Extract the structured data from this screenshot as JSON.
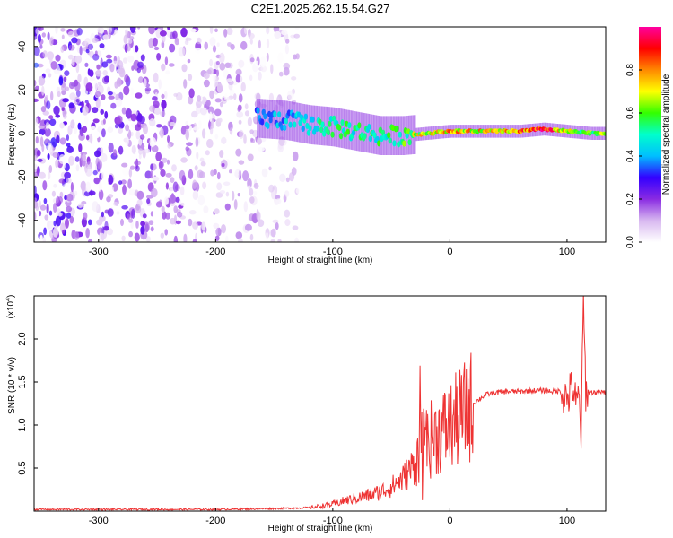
{
  "chart_data": [
    {
      "type": "heatmap",
      "title": "C2E1.2025.262.15.54.G27",
      "xlabel": "Height of straight line (km)",
      "ylabel": "Frequency (Hz)",
      "xlim": [
        -355,
        133
      ],
      "ylim": [
        -50,
        49
      ],
      "x_ticks": [
        -300,
        -200,
        -100,
        0,
        100
      ],
      "x_tick_labels": [
        "-300",
        "-200",
        "-100",
        "0",
        "100"
      ],
      "y_ticks": [
        -40,
        -20,
        0,
        20,
        40
      ],
      "y_tick_labels": [
        "-40",
        "-20",
        "0",
        "20",
        "40"
      ],
      "colorbar": {
        "label": "Normalized spectral amplitude",
        "range": [
          0,
          1
        ],
        "ticks": [
          0.0,
          0.2,
          0.4,
          0.6,
          0.8
        ],
        "tick_labels": [
          "0.0",
          "0.2",
          "0.4",
          "0.6",
          "0.8"
        ],
        "colors": [
          "#ffffff",
          "#d8b8f0",
          "#8a2be2",
          "#3300ff",
          "#00bfff",
          "#00ffcc",
          "#33ff00",
          "#ffff00",
          "#ff8800",
          "#ff0000",
          "#ff00a0"
        ]
      },
      "ridge": {
        "x": [
          -165,
          -140,
          -120,
          -100,
          -80,
          -60,
          -40,
          -20,
          0,
          20,
          40,
          60,
          80,
          100,
          120,
          133
        ],
        "freq": [
          7,
          6,
          4,
          3,
          1,
          -1,
          -1,
          0,
          1,
          1,
          1,
          1,
          2,
          1,
          0,
          0
        ],
        "amplitude": [
          0.35,
          0.4,
          0.45,
          0.5,
          0.5,
          0.5,
          0.55,
          0.7,
          0.75,
          0.7,
          0.75,
          0.8,
          0.9,
          0.65,
          0.6,
          0.6
        ]
      },
      "noise_region_x": [
        -355,
        -130
      ]
    },
    {
      "type": "line",
      "title": "",
      "xlabel": "Height of straight line (km)",
      "ylabel": "SNR (10 * v/v)",
      "y_multiplier": "(x10",
      "y_multiplier_exp": "4",
      "y_multiplier_close": ")",
      "xlim": [
        -355,
        133
      ],
      "ylim": [
        0,
        2.5
      ],
      "x_ticks": [
        -300,
        -200,
        -100,
        0,
        100
      ],
      "x_tick_labels": [
        "-300",
        "-200",
        "-100",
        "0",
        "100"
      ],
      "y_ticks": [
        0.5,
        1.0,
        1.5,
        2.0
      ],
      "y_tick_labels": [
        "0.5",
        "1.0",
        "1.5",
        "2.0"
      ],
      "color": "#ee3333",
      "series": [
        {
          "name": "SNR",
          "x": [
            -355,
            -300,
            -250,
            -200,
            -150,
            -120,
            -100,
            -90,
            -80,
            -70,
            -60,
            -50,
            -40,
            -30,
            -25,
            -20,
            -10,
            0,
            10,
            20,
            30,
            40,
            50,
            60,
            70,
            80,
            90,
            95,
            100,
            105,
            108,
            110,
            112,
            114,
            116,
            120,
            133
          ],
          "y": [
            0.02,
            0.02,
            0.02,
            0.02,
            0.03,
            0.04,
            0.08,
            0.12,
            0.15,
            0.18,
            0.22,
            0.28,
            0.38,
            0.55,
            0.75,
            0.8,
            0.9,
            0.98,
            1.1,
            1.25,
            1.35,
            1.38,
            1.39,
            1.39,
            1.4,
            1.4,
            1.39,
            1.4,
            1.3,
            1.45,
            1.2,
            1.35,
            0.9,
            2.4,
            1.4,
            1.38,
            1.38
          ]
        }
      ]
    }
  ]
}
